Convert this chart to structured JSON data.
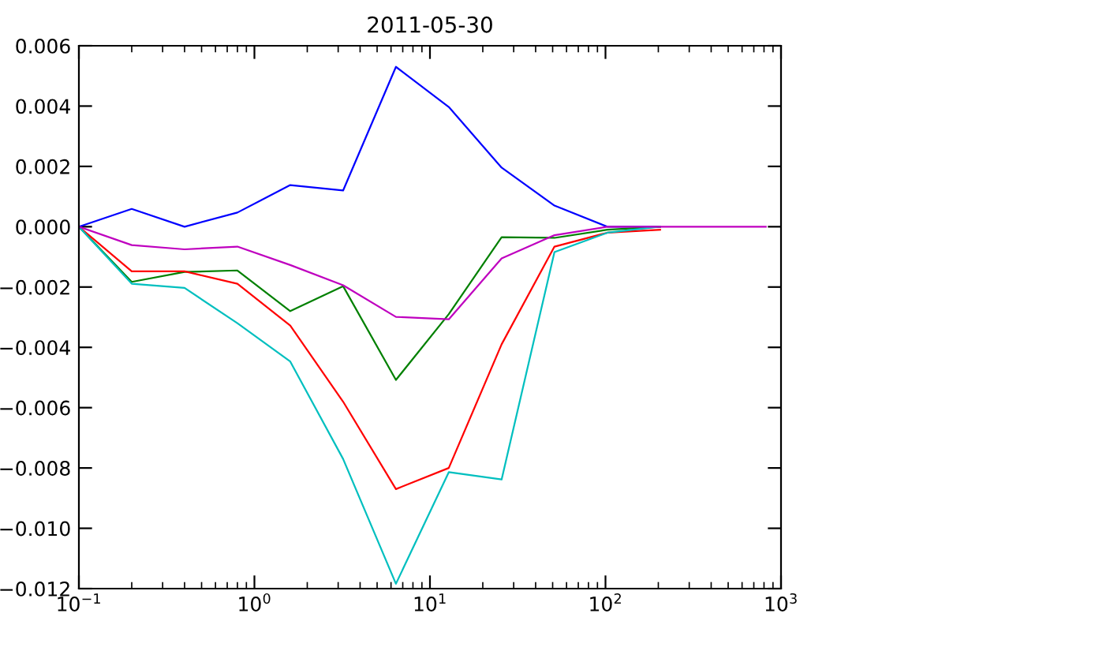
{
  "chart_data": {
    "type": "line",
    "title": "2011-05-30",
    "x": [
      0.1,
      0.2,
      0.4,
      0.8,
      1.6,
      3.2,
      6.4,
      12.8,
      25.6,
      51.2,
      102.4,
      204.8,
      409.6,
      819.2
    ],
    "series": [
      {
        "color": "#0000ff",
        "values": [
          0,
          0.00059,
          0,
          0.00047,
          0.00138,
          0.0012,
          0.0053,
          0.00397,
          0.00196,
          0.0007,
          0,
          0,
          null,
          null
        ]
      },
      {
        "color": "#008000",
        "values": [
          0,
          -0.00183,
          -0.0015,
          -0.00145,
          -0.0028,
          -0.00197,
          -0.00508,
          -0.0029,
          -0.00035,
          -0.00037,
          -0.0001,
          0,
          null,
          null
        ]
      },
      {
        "color": "#ff0000",
        "values": [
          0,
          -0.00148,
          -0.00148,
          -0.00189,
          -0.00328,
          -0.0058,
          -0.0087,
          -0.008,
          -0.0039,
          -0.00066,
          -0.0002,
          -0.0001,
          null,
          null
        ]
      },
      {
        "color": "#00bfbf",
        "values": [
          0,
          -0.00189,
          -0.00203,
          -0.0032,
          -0.00447,
          -0.0077,
          -0.01184,
          -0.00814,
          -0.00838,
          -0.00084,
          -0.0002,
          0,
          null,
          null
        ]
      },
      {
        "color": "#bf00bf",
        "values": [
          0,
          -0.00061,
          -0.00075,
          -0.00066,
          -0.00127,
          -0.00194,
          -0.00299,
          -0.00307,
          -0.00105,
          -0.00028,
          0,
          0,
          0,
          0
        ]
      }
    ],
    "log": "x",
    "xlim": [
      0.1,
      1000
    ],
    "xticks": [
      {
        "value": 0.1,
        "label": "10$^{−1}$"
      },
      {
        "value": 1,
        "label": "10$^{0}$"
      },
      {
        "value": 10,
        "label": "10$^{1}$"
      },
      {
        "value": 100,
        "label": "10$^{2}$"
      },
      {
        "value": 1000,
        "label": "10$^{3}$"
      }
    ],
    "ylim": [
      -0.012,
      0.006
    ],
    "yticks": [
      {
        "value": -0.012,
        "label": "−0.012"
      },
      {
        "value": -0.01,
        "label": "−0.010"
      },
      {
        "value": -0.008,
        "label": "−0.008"
      },
      {
        "value": -0.006,
        "label": "−0.006"
      },
      {
        "value": -0.004,
        "label": "−0.004"
      },
      {
        "value": -0.002,
        "label": "−0.002"
      },
      {
        "value": 0,
        "label": "0.000"
      },
      {
        "value": 0.002,
        "label": "0.002"
      },
      {
        "value": 0.004,
        "label": "0.004"
      },
      {
        "value": 0.006,
        "label": "0.006"
      }
    ],
    "grid": false,
    "marker": "none",
    "line_style": "solid"
  }
}
